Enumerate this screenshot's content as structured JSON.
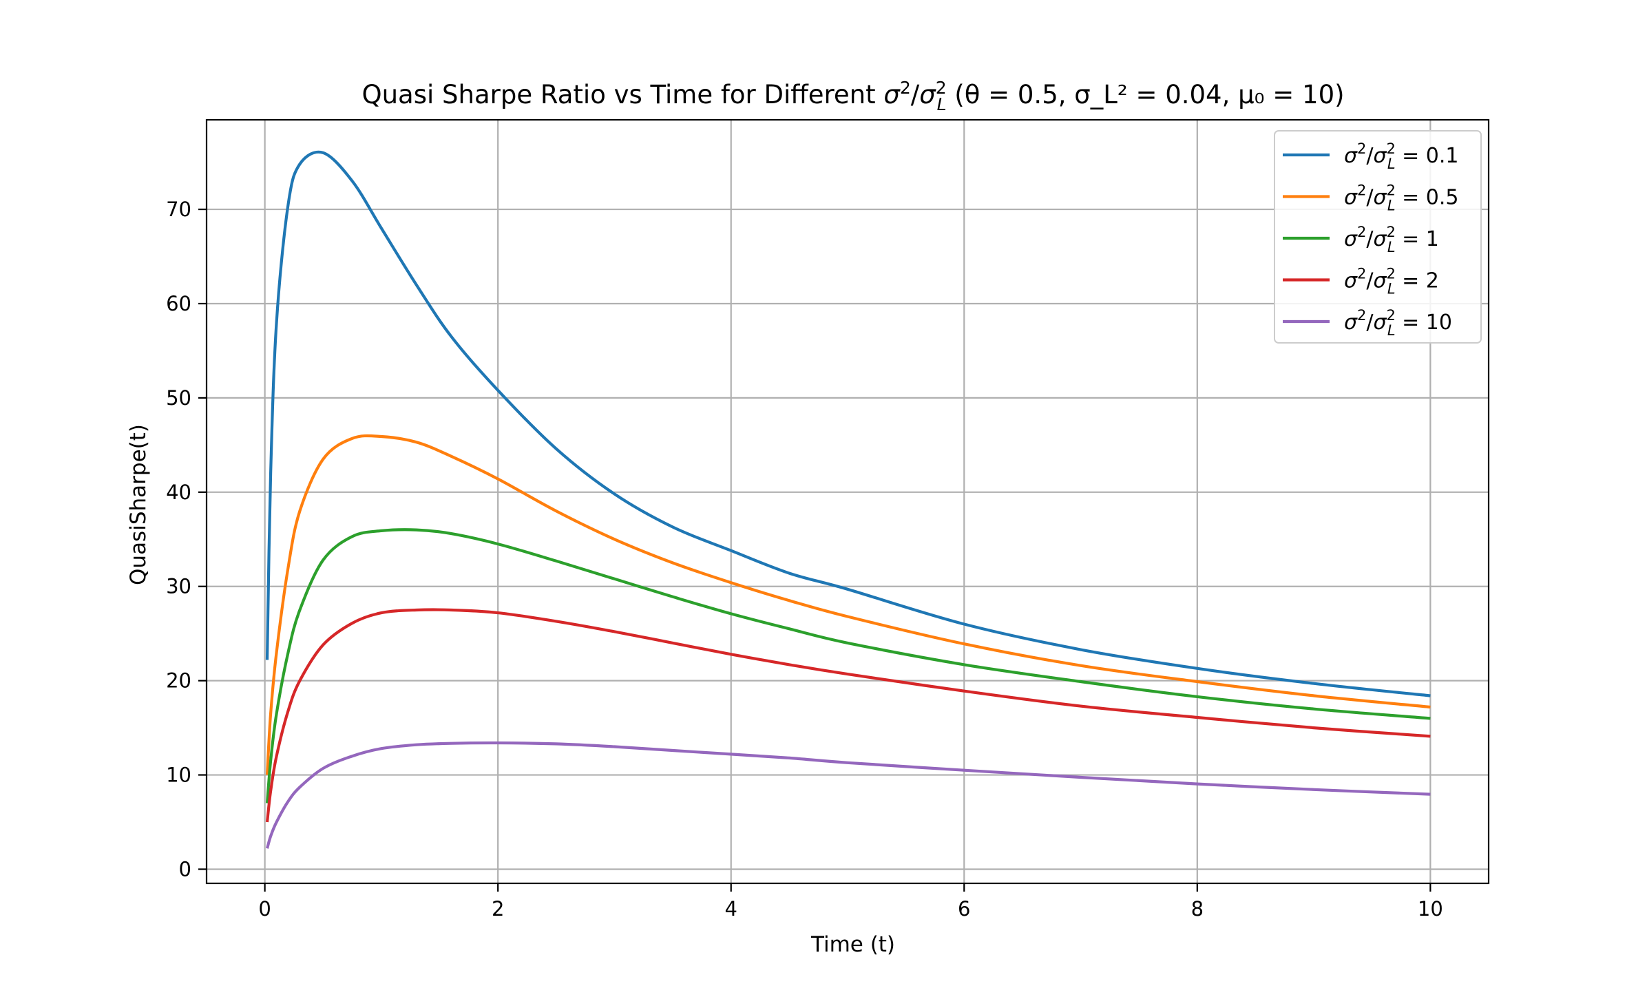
{
  "chart_data": {
    "type": "line",
    "title": "Quasi Sharpe Ratio vs Time for Different σ²/σ_L² (θ = 0.5, σ_L² = 0.04, μ₀ = 10)",
    "title_parts": {
      "prefix": "Quasi Sharpe Ratio vs Time for Different ",
      "params": [
        "θ = 0.5",
        "σ_L² = 0.04",
        "μ₀ = 10"
      ]
    },
    "xlabel": "Time (t)",
    "ylabel": "QuasiSharpe(t)",
    "xlim": [
      -0.5,
      10.5
    ],
    "ylim": [
      -1.5,
      79.5
    ],
    "xticks": [
      0,
      2,
      4,
      6,
      8,
      10
    ],
    "yticks": [
      0,
      10,
      20,
      30,
      40,
      50,
      60,
      70
    ],
    "grid": true,
    "legend_position": "top-right",
    "x": [
      0.02,
      0.05,
      0.1,
      0.2,
      0.3,
      0.5,
      0.75,
      1.0,
      1.3,
      1.6,
      2.0,
      2.5,
      3.0,
      3.5,
      4.0,
      4.5,
      5.0,
      6.0,
      7.0,
      8.0,
      9.0,
      10.0
    ],
    "series": [
      {
        "name": "σ²/σ_L² = 0.1",
        "ratio": "0.1",
        "color": "#1f77b4",
        "values": [
          22.2,
          42.0,
          58.0,
          70.5,
          74.8,
          76.0,
          73.0,
          68.0,
          62.0,
          56.5,
          50.8,
          44.6,
          39.8,
          36.3,
          33.8,
          31.4,
          29.7,
          26.0,
          23.3,
          21.3,
          19.7,
          18.4
        ]
      },
      {
        "name": "σ²/σ_L² = 0.5",
        "ratio": "0.5",
        "color": "#ff7f0e",
        "values": [
          10.0,
          16.5,
          23.0,
          32.0,
          38.0,
          43.5,
          45.7,
          45.9,
          45.3,
          43.8,
          41.4,
          38.0,
          35.0,
          32.5,
          30.4,
          28.5,
          26.8,
          23.9,
          21.6,
          19.9,
          18.4,
          17.2
        ]
      },
      {
        "name": "σ²/σ_L² = 1",
        "ratio": "1",
        "color": "#2ca02c",
        "values": [
          7.0,
          11.5,
          16.5,
          23.0,
          27.5,
          32.8,
          35.3,
          35.9,
          36.0,
          35.6,
          34.5,
          32.7,
          30.8,
          28.9,
          27.1,
          25.5,
          24.0,
          21.7,
          19.9,
          18.3,
          17.0,
          16.0
        ]
      },
      {
        "name": "σ²/σ_L² = 2",
        "ratio": "2",
        "color": "#d62728",
        "values": [
          5.0,
          8.3,
          12.0,
          16.8,
          20.0,
          23.8,
          26.1,
          27.2,
          27.5,
          27.5,
          27.2,
          26.3,
          25.2,
          24.0,
          22.8,
          21.7,
          20.7,
          18.9,
          17.3,
          16.1,
          15.0,
          14.1
        ]
      },
      {
        "name": "σ²/σ_L² = 10",
        "ratio": "10",
        "color": "#9467bd",
        "values": [
          2.2,
          3.5,
          5.0,
          7.2,
          8.7,
          10.7,
          12.0,
          12.8,
          13.2,
          13.35,
          13.4,
          13.3,
          13.0,
          12.6,
          12.2,
          11.8,
          11.3,
          10.5,
          9.75,
          9.05,
          8.45,
          7.95
        ]
      }
    ]
  }
}
